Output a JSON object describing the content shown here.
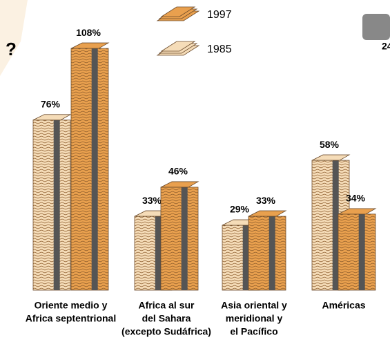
{
  "chart_data": {
    "type": "bar",
    "categories": [
      [
        "Oriente medio y",
        "Africa septentrional"
      ],
      [
        "Africa al sur",
        "del Sahara",
        "(excepto Sudáfrica)"
      ],
      [
        "Asia oriental y",
        "meridional y",
        "el Pacífico"
      ],
      [
        "Américas"
      ]
    ],
    "series": [
      {
        "name": "1985",
        "color": "#f5dcb8",
        "values": [
          76,
          33,
          29,
          58
        ],
        "value_labels": [
          "76%",
          "33%",
          "29%",
          "58%"
        ]
      },
      {
        "name": "1997",
        "color": "#e9a04e",
        "values": [
          108,
          46,
          33,
          34
        ],
        "value_labels": [
          "108%",
          "46%",
          "33%",
          "34%"
        ]
      }
    ],
    "legend_order": [
      1,
      0
    ],
    "icon_text": "?",
    "corner_label": "24"
  }
}
